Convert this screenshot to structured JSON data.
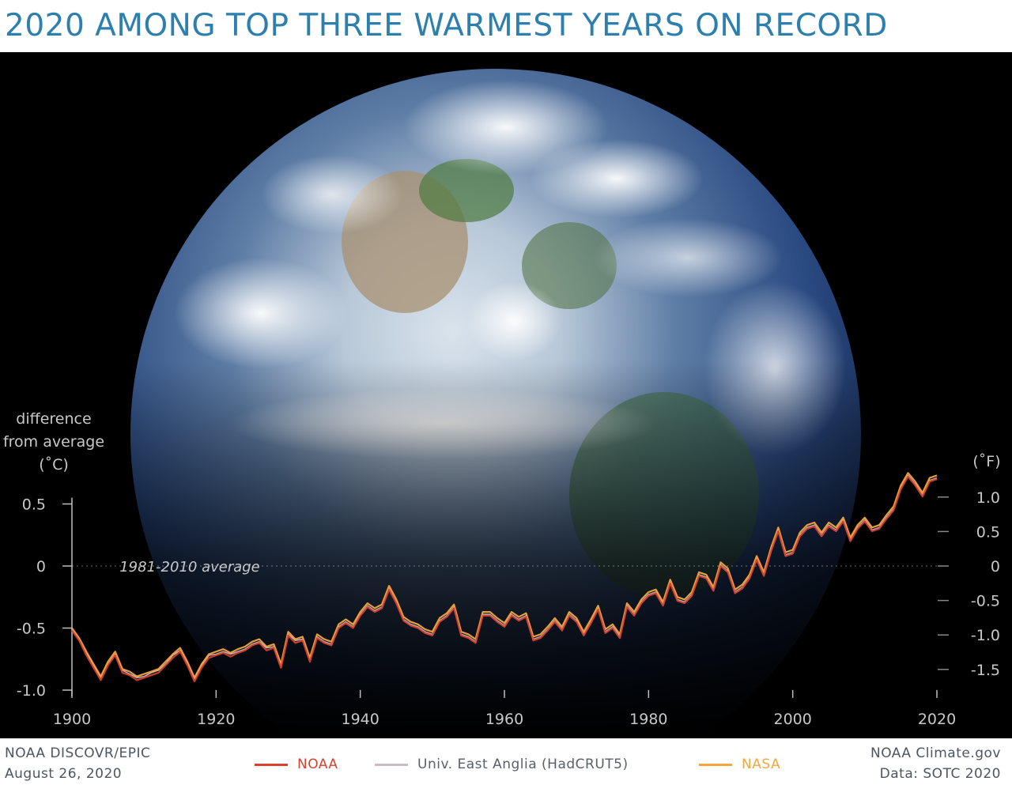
{
  "title": "2020 AMONG TOP THREE WARMEST YEARS ON RECORD",
  "colors": {
    "title": "#2d7fae",
    "noaa": "#d8402f",
    "hadcrut": "#c9bcc4",
    "nasa": "#f2a73d"
  },
  "chart_data": {
    "type": "line",
    "x": [
      1900,
      1901,
      1902,
      1903,
      1904,
      1905,
      1906,
      1907,
      1908,
      1909,
      1910,
      1911,
      1912,
      1913,
      1914,
      1915,
      1916,
      1917,
      1918,
      1919,
      1920,
      1921,
      1922,
      1923,
      1924,
      1925,
      1926,
      1927,
      1928,
      1929,
      1930,
      1931,
      1932,
      1933,
      1934,
      1935,
      1936,
      1937,
      1938,
      1939,
      1940,
      1941,
      1942,
      1943,
      1944,
      1945,
      1946,
      1947,
      1948,
      1949,
      1950,
      1951,
      1952,
      1953,
      1954,
      1955,
      1956,
      1957,
      1958,
      1959,
      1960,
      1961,
      1962,
      1963,
      1964,
      1965,
      1966,
      1967,
      1968,
      1969,
      1970,
      1971,
      1972,
      1973,
      1974,
      1975,
      1976,
      1977,
      1978,
      1979,
      1980,
      1981,
      1982,
      1983,
      1984,
      1985,
      1986,
      1987,
      1988,
      1989,
      1990,
      1991,
      1992,
      1993,
      1994,
      1995,
      1996,
      1997,
      1998,
      1999,
      2000,
      2001,
      2002,
      2003,
      2004,
      2005,
      2006,
      2007,
      2008,
      2009,
      2010,
      2011,
      2012,
      2013,
      2014,
      2015,
      2016,
      2017,
      2018,
      2019,
      2020
    ],
    "series": [
      {
        "name": "NOAA",
        "values": [
          -0.52,
          -0.6,
          -0.72,
          -0.82,
          -0.92,
          -0.8,
          -0.72,
          -0.86,
          -0.88,
          -0.92,
          -0.9,
          -0.88,
          -0.86,
          -0.8,
          -0.74,
          -0.69,
          -0.8,
          -0.93,
          -0.82,
          -0.74,
          -0.72,
          -0.7,
          -0.73,
          -0.7,
          -0.68,
          -0.64,
          -0.62,
          -0.68,
          -0.66,
          -0.82,
          -0.56,
          -0.62,
          -0.6,
          -0.77,
          -0.58,
          -0.62,
          -0.64,
          -0.5,
          -0.46,
          -0.5,
          -0.4,
          -0.33,
          -0.37,
          -0.34,
          -0.19,
          -0.3,
          -0.44,
          -0.48,
          -0.5,
          -0.54,
          -0.56,
          -0.45,
          -0.41,
          -0.34,
          -0.56,
          -0.58,
          -0.62,
          -0.4,
          -0.4,
          -0.45,
          -0.49,
          -0.4,
          -0.44,
          -0.41,
          -0.6,
          -0.58,
          -0.52,
          -0.45,
          -0.52,
          -0.4,
          -0.45,
          -0.56,
          -0.46,
          -0.35,
          -0.54,
          -0.5,
          -0.58,
          -0.33,
          -0.4,
          -0.3,
          -0.24,
          -0.22,
          -0.32,
          -0.14,
          -0.28,
          -0.3,
          -0.24,
          -0.08,
          -0.1,
          -0.2,
          0.0,
          -0.05,
          -0.22,
          -0.18,
          -0.1,
          0.05,
          -0.08,
          0.12,
          0.28,
          0.08,
          0.1,
          0.24,
          0.3,
          0.32,
          0.24,
          0.32,
          0.28,
          0.36,
          0.2,
          0.3,
          0.36,
          0.28,
          0.3,
          0.38,
          0.45,
          0.62,
          0.72,
          0.65,
          0.56,
          0.68,
          0.7
        ]
      },
      {
        "name": "Univ. East Anglia (HadCRUT5)",
        "values": [
          -0.51,
          -0.59,
          -0.7,
          -0.8,
          -0.9,
          -0.79,
          -0.71,
          -0.84,
          -0.87,
          -0.9,
          -0.89,
          -0.86,
          -0.84,
          -0.79,
          -0.72,
          -0.68,
          -0.78,
          -0.91,
          -0.8,
          -0.72,
          -0.71,
          -0.69,
          -0.71,
          -0.69,
          -0.67,
          -0.63,
          -0.61,
          -0.66,
          -0.65,
          -0.8,
          -0.55,
          -0.6,
          -0.59,
          -0.75,
          -0.57,
          -0.61,
          -0.63,
          -0.49,
          -0.45,
          -0.49,
          -0.39,
          -0.32,
          -0.36,
          -0.33,
          -0.18,
          -0.29,
          -0.43,
          -0.47,
          -0.49,
          -0.53,
          -0.55,
          -0.44,
          -0.4,
          -0.33,
          -0.55,
          -0.57,
          -0.61,
          -0.39,
          -0.39,
          -0.44,
          -0.48,
          -0.39,
          -0.43,
          -0.4,
          -0.59,
          -0.57,
          -0.51,
          -0.44,
          -0.51,
          -0.39,
          -0.44,
          -0.55,
          -0.45,
          -0.34,
          -0.53,
          -0.49,
          -0.57,
          -0.32,
          -0.39,
          -0.29,
          -0.23,
          -0.21,
          -0.31,
          -0.13,
          -0.27,
          -0.29,
          -0.23,
          -0.07,
          -0.09,
          -0.19,
          0.01,
          -0.04,
          -0.21,
          -0.17,
          -0.09,
          0.06,
          -0.07,
          0.13,
          0.29,
          0.09,
          0.11,
          0.25,
          0.31,
          0.33,
          0.25,
          0.33,
          0.29,
          0.37,
          0.21,
          0.31,
          0.37,
          0.29,
          0.31,
          0.39,
          0.46,
          0.63,
          0.73,
          0.66,
          0.57,
          0.69,
          0.71
        ]
      },
      {
        "name": "NASA",
        "values": [
          -0.5,
          -0.58,
          -0.69,
          -0.79,
          -0.89,
          -0.77,
          -0.69,
          -0.83,
          -0.85,
          -0.89,
          -0.87,
          -0.85,
          -0.83,
          -0.77,
          -0.71,
          -0.66,
          -0.77,
          -0.9,
          -0.79,
          -0.71,
          -0.69,
          -0.67,
          -0.7,
          -0.67,
          -0.65,
          -0.61,
          -0.59,
          -0.65,
          -0.63,
          -0.79,
          -0.53,
          -0.59,
          -0.57,
          -0.74,
          -0.55,
          -0.59,
          -0.61,
          -0.47,
          -0.43,
          -0.47,
          -0.37,
          -0.3,
          -0.34,
          -0.31,
          -0.16,
          -0.27,
          -0.41,
          -0.45,
          -0.47,
          -0.51,
          -0.53,
          -0.42,
          -0.38,
          -0.31,
          -0.53,
          -0.55,
          -0.59,
          -0.37,
          -0.37,
          -0.42,
          -0.46,
          -0.37,
          -0.41,
          -0.38,
          -0.57,
          -0.55,
          -0.49,
          -0.42,
          -0.49,
          -0.37,
          -0.42,
          -0.53,
          -0.43,
          -0.32,
          -0.51,
          -0.47,
          -0.55,
          -0.3,
          -0.37,
          -0.27,
          -0.21,
          -0.19,
          -0.29,
          -0.11,
          -0.25,
          -0.27,
          -0.21,
          -0.05,
          -0.07,
          -0.17,
          0.03,
          -0.02,
          -0.19,
          -0.15,
          -0.07,
          0.08,
          -0.05,
          0.15,
          0.31,
          0.11,
          0.13,
          0.27,
          0.33,
          0.35,
          0.27,
          0.35,
          0.31,
          0.39,
          0.23,
          0.33,
          0.39,
          0.31,
          0.33,
          0.41,
          0.48,
          0.65,
          0.75,
          0.68,
          0.59,
          0.71,
          0.73
        ]
      }
    ],
    "ylabel_left": [
      "difference",
      "from average",
      "(˚C)"
    ],
    "ylabel_right": "(˚F)",
    "ylim": [
      -1.05,
      0.6
    ],
    "xlim": [
      1900,
      2020
    ],
    "x_ticks": [
      1900,
      1920,
      1940,
      1960,
      1980,
      2000,
      2020
    ],
    "y_ticks_left": [
      0.5,
      0,
      -0.5,
      -1.0
    ],
    "y_ticks_left_labels": [
      "0.5",
      "0",
      "-0.5",
      "-1.0"
    ],
    "y_ticks_right": [
      1.0,
      0.5,
      0,
      -0.5,
      -1.0,
      -1.5
    ],
    "y_ticks_right_labels": [
      "1.0",
      "0.5",
      "0",
      "-0.5",
      "-1.0",
      "-1.5"
    ],
    "baseline_label": "1981-2010 average",
    "grid": false,
    "legend_position": "bottom"
  },
  "footer": {
    "credit_line1": "NOAA DISCOVR/EPIC",
    "credit_line2": "August 26, 2020",
    "source_line1": "NOAA Climate.gov",
    "source_line2": "Data: SOTC 2020",
    "legend": [
      "NOAA",
      "Univ. East Anglia (HadCRUT5)",
      "NASA"
    ]
  }
}
